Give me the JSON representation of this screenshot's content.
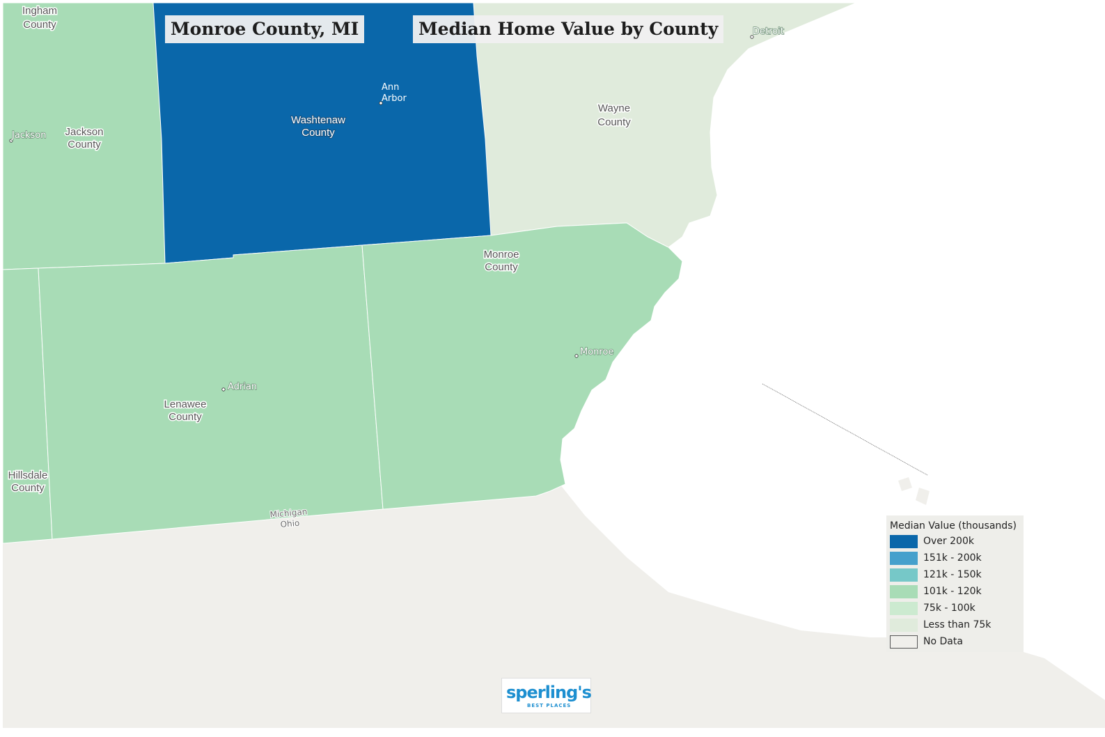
{
  "titles": {
    "county": "Monroe County, MI",
    "map": "Median Home Value by County"
  },
  "colors": {
    "over_200k": "#0a67aa",
    "k151_200": "#45a0cc",
    "k121_150": "#76c8c8",
    "k101_120": "#a8dcb6",
    "k75_100": "#ccead0",
    "less_75k": "#e0ebdc",
    "no_data": "#f0efeb",
    "water": "#ffffff"
  },
  "counties": [
    {
      "name": "Ingham",
      "line1": "Ingham",
      "line2": "County",
      "category": "101k - 120k"
    },
    {
      "name": "Jackson",
      "line1": "Jackson",
      "line2": "County",
      "category": "101k - 120k"
    },
    {
      "name": "Washtenaw",
      "line1": "Washtenaw",
      "line2": "County",
      "category": "Over 200k"
    },
    {
      "name": "Wayne",
      "line1": "Wayne",
      "line2": "County",
      "category": "Less than 75k"
    },
    {
      "name": "Monroe",
      "line1": "Monroe",
      "line2": "County",
      "category": "101k - 120k"
    },
    {
      "name": "Lenawee",
      "line1": "Lenawee",
      "line2": "County",
      "category": "101k - 120k"
    },
    {
      "name": "Hillsdale",
      "line1": "Hillsdale",
      "line2": "County",
      "category": "101k - 120k"
    }
  ],
  "cities": {
    "jackson": "Jackson",
    "ann_arbor_1": "Ann",
    "ann_arbor_2": "Arbor",
    "detroit": "Detroit",
    "adrian": "Adrian",
    "monroe": "Monroe"
  },
  "states": {
    "michigan": "Michigan",
    "ohio": "Ohio"
  },
  "legend": {
    "title": "Median Value (thousands)",
    "items": [
      {
        "label": "Over 200k",
        "color": "#0a67aa"
      },
      {
        "label": "151k - 200k",
        "color": "#45a0cc"
      },
      {
        "label": "121k - 150k",
        "color": "#76c8c8"
      },
      {
        "label": "101k - 120k",
        "color": "#a8dcb6"
      },
      {
        "label": "75k - 100k",
        "color": "#ccead0"
      },
      {
        "label": "Less than 75k",
        "color": "#e0ebdc"
      },
      {
        "label": "No Data",
        "color": "#f0efeb"
      }
    ]
  },
  "logo": {
    "brand": "sperling's",
    "tagline": "BEST PLACES"
  }
}
